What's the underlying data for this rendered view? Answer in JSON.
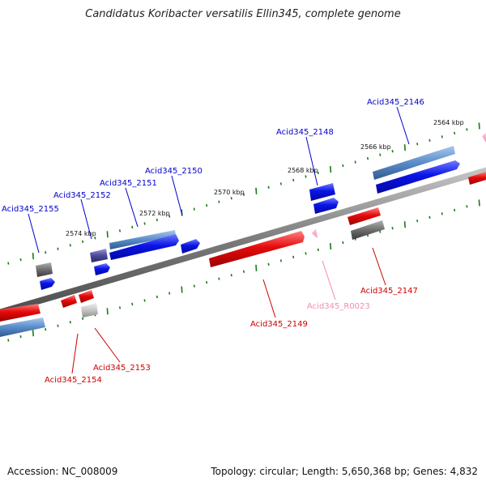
{
  "title": "Candidatus Koribacter versatilis Ellin345, complete genome",
  "footer": {
    "accession": "Accession: NC_008009",
    "stats": "Topology: circular; Length: 5,650,368 bp; Genes: 4,832"
  },
  "scale_labels": [
    "2564 kbp",
    "2566 kbp",
    "2568 kbp",
    "2570 kbp",
    "2572 kbp",
    "2574 kbp"
  ],
  "gene_labels": [
    {
      "id": "Acid345_2146",
      "strand": "forward",
      "color": "#0000cc"
    },
    {
      "id": "Acid345_2148",
      "strand": "forward",
      "color": "#0000cc"
    },
    {
      "id": "Acid345_2150",
      "strand": "forward",
      "color": "#0000cc"
    },
    {
      "id": "Acid345_2151",
      "strand": "forward",
      "color": "#0000cc"
    },
    {
      "id": "Acid345_2152",
      "strand": "forward",
      "color": "#0000cc"
    },
    {
      "id": "Acid345_2155",
      "strand": "forward",
      "color": "#0000cc"
    },
    {
      "id": "Acid345_2147",
      "strand": "reverse",
      "color": "#cc0000"
    },
    {
      "id": "Acid345_R0023",
      "strand": "reverse",
      "color": "#f08cb4"
    },
    {
      "id": "Acid345_2149",
      "strand": "reverse",
      "color": "#cc0000"
    },
    {
      "id": "Acid345_2153",
      "strand": "reverse",
      "color": "#cc0000"
    },
    {
      "id": "Acid345_2154",
      "strand": "reverse",
      "color": "#cc0000"
    }
  ],
  "colors": {
    "forward_cds": "#0a14e6",
    "reverse_cds": "#e60a0a",
    "blast_blue": "#5a8cc8",
    "gray_feature": "#6e6e6e",
    "rna": "#f08cb4",
    "backbone": "#8a8a8a",
    "tick": "#1a7a1a"
  }
}
